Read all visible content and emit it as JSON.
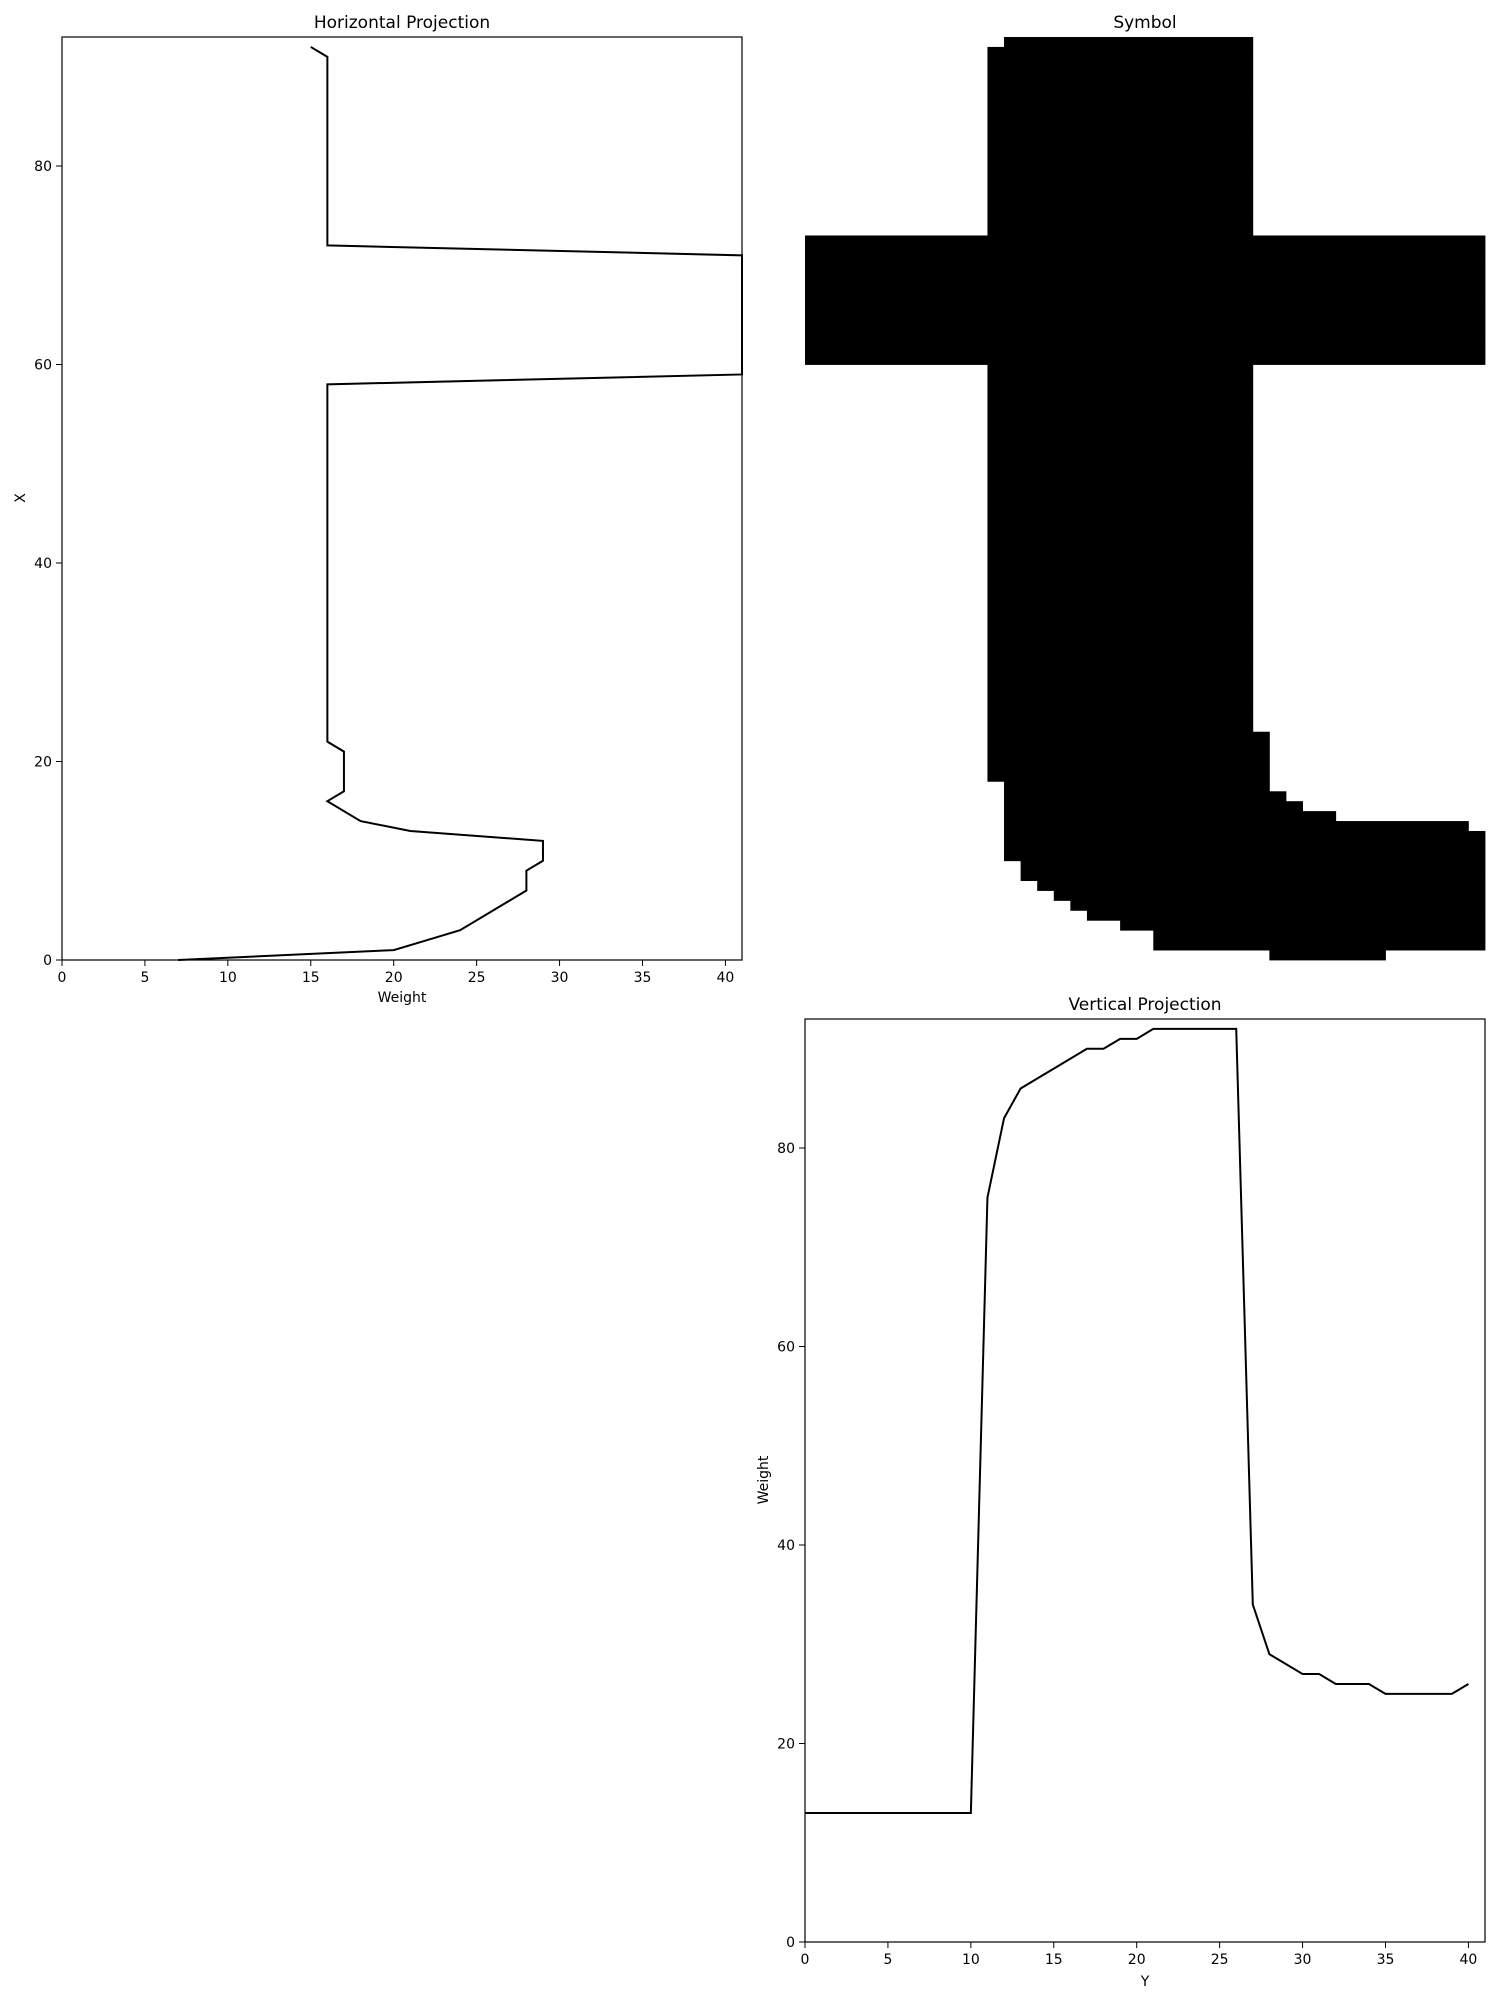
{
  "chart_data": [
    {
      "type": "line",
      "title": "Horizontal Projection",
      "xlabel": "Weight",
      "ylabel": "X",
      "xlim": [
        0,
        41
      ],
      "ylim": [
        0,
        93
      ],
      "xticks": [
        0,
        5,
        10,
        15,
        20,
        25,
        30,
        35,
        40
      ],
      "yticks": [
        0,
        20,
        40,
        60,
        80
      ],
      "color": "#000000",
      "points": [
        [
          7,
          0
        ],
        [
          20,
          1
        ],
        [
          22,
          2
        ],
        [
          24,
          3
        ],
        [
          26,
          5
        ],
        [
          28,
          7
        ],
        [
          28,
          9
        ],
        [
          29,
          10
        ],
        [
          29,
          12
        ],
        [
          21,
          13
        ],
        [
          18,
          14
        ],
        [
          16,
          16
        ],
        [
          17,
          17
        ],
        [
          17,
          21
        ],
        [
          16,
          22
        ],
        [
          16,
          58
        ],
        [
          41,
          59
        ],
        [
          41,
          71
        ],
        [
          16,
          72
        ],
        [
          16,
          91
        ],
        [
          15,
          92
        ]
      ]
    },
    {
      "type": "heatmap",
      "title": "Symbol",
      "rows": 93,
      "cols": 41,
      "fill_color": "#000000",
      "background": "#ffffff",
      "row_runs": [
        [
          [
            12,
            27
          ]
        ],
        [
          [
            11,
            27
          ]
        ],
        [
          [
            11,
            27
          ]
        ],
        [
          [
            11,
            27
          ]
        ],
        [
          [
            11,
            27
          ]
        ],
        [
          [
            11,
            27
          ]
        ],
        [
          [
            11,
            27
          ]
        ],
        [
          [
            11,
            27
          ]
        ],
        [
          [
            11,
            27
          ]
        ],
        [
          [
            11,
            27
          ]
        ],
        [
          [
            11,
            27
          ]
        ],
        [
          [
            11,
            27
          ]
        ],
        [
          [
            11,
            27
          ]
        ],
        [
          [
            11,
            27
          ]
        ],
        [
          [
            11,
            27
          ]
        ],
        [
          [
            11,
            27
          ]
        ],
        [
          [
            11,
            27
          ]
        ],
        [
          [
            11,
            27
          ]
        ],
        [
          [
            11,
            27
          ]
        ],
        [
          [
            11,
            27
          ]
        ],
        [
          [
            0,
            41
          ]
        ],
        [
          [
            0,
            41
          ]
        ],
        [
          [
            0,
            41
          ]
        ],
        [
          [
            0,
            41
          ]
        ],
        [
          [
            0,
            41
          ]
        ],
        [
          [
            0,
            41
          ]
        ],
        [
          [
            0,
            41
          ]
        ],
        [
          [
            0,
            41
          ]
        ],
        [
          [
            0,
            41
          ]
        ],
        [
          [
            0,
            41
          ]
        ],
        [
          [
            0,
            41
          ]
        ],
        [
          [
            0,
            41
          ]
        ],
        [
          [
            0,
            41
          ]
        ],
        [
          [
            11,
            27
          ]
        ],
        [
          [
            11,
            27
          ]
        ],
        [
          [
            11,
            27
          ]
        ],
        [
          [
            11,
            27
          ]
        ],
        [
          [
            11,
            27
          ]
        ],
        [
          [
            11,
            27
          ]
        ],
        [
          [
            11,
            27
          ]
        ],
        [
          [
            11,
            27
          ]
        ],
        [
          [
            11,
            27
          ]
        ],
        [
          [
            11,
            27
          ]
        ],
        [
          [
            11,
            27
          ]
        ],
        [
          [
            11,
            27
          ]
        ],
        [
          [
            11,
            27
          ]
        ],
        [
          [
            11,
            27
          ]
        ],
        [
          [
            11,
            27
          ]
        ],
        [
          [
            11,
            27
          ]
        ],
        [
          [
            11,
            27
          ]
        ],
        [
          [
            11,
            27
          ]
        ],
        [
          [
            11,
            27
          ]
        ],
        [
          [
            11,
            27
          ]
        ],
        [
          [
            11,
            27
          ]
        ],
        [
          [
            11,
            27
          ]
        ],
        [
          [
            11,
            27
          ]
        ],
        [
          [
            11,
            27
          ]
        ],
        [
          [
            11,
            27
          ]
        ],
        [
          [
            11,
            27
          ]
        ],
        [
          [
            11,
            27
          ]
        ],
        [
          [
            11,
            27
          ]
        ],
        [
          [
            11,
            27
          ]
        ],
        [
          [
            11,
            27
          ]
        ],
        [
          [
            11,
            27
          ]
        ],
        [
          [
            11,
            27
          ]
        ],
        [
          [
            11,
            27
          ]
        ],
        [
          [
            11,
            27
          ]
        ],
        [
          [
            11,
            27
          ]
        ],
        [
          [
            11,
            27
          ]
        ],
        [
          [
            11,
            27
          ]
        ],
        [
          [
            11,
            28
          ]
        ],
        [
          [
            11,
            28
          ]
        ],
        [
          [
            11,
            28
          ]
        ],
        [
          [
            11,
            28
          ]
        ],
        [
          [
            11,
            28
          ]
        ],
        [
          [
            12,
            28
          ]
        ],
        [
          [
            12,
            29
          ]
        ],
        [
          [
            12,
            30
          ]
        ],
        [
          [
            12,
            32
          ]
        ],
        [
          [
            12,
            40
          ]
        ],
        [
          [
            12,
            41
          ]
        ],
        [
          [
            12,
            41
          ]
        ],
        [
          [
            12,
            41
          ]
        ],
        [
          [
            13,
            41
          ]
        ],
        [
          [
            13,
            41
          ]
        ],
        [
          [
            14,
            41
          ]
        ],
        [
          [
            15,
            41
          ]
        ],
        [
          [
            16,
            41
          ]
        ],
        [
          [
            17,
            41
          ]
        ],
        [
          [
            19,
            41
          ]
        ],
        [
          [
            21,
            41
          ]
        ],
        [
          [
            21,
            41
          ]
        ],
        [
          [
            28,
            35
          ]
        ]
      ]
    },
    {
      "type": "line",
      "title": "Vertical Projection",
      "xlabel": "Y",
      "ylabel": "Weight",
      "xlim": [
        0,
        41
      ],
      "ylim": [
        0,
        93
      ],
      "xticks": [
        0,
        5,
        10,
        15,
        20,
        25,
        30,
        35,
        40
      ],
      "yticks": [
        0,
        20,
        40,
        60,
        80
      ],
      "color": "#000000",
      "points": [
        [
          0,
          13
        ],
        [
          10,
          13
        ],
        [
          11,
          75
        ],
        [
          12,
          83
        ],
        [
          13,
          86
        ],
        [
          17,
          90
        ],
        [
          18,
          90
        ],
        [
          19,
          91
        ],
        [
          20,
          91
        ],
        [
          21,
          92
        ],
        [
          26,
          92
        ],
        [
          27,
          34
        ],
        [
          28,
          29
        ],
        [
          30,
          27
        ],
        [
          31,
          27
        ],
        [
          32,
          26
        ],
        [
          34,
          26
        ],
        [
          35,
          25
        ],
        [
          39,
          25
        ],
        [
          40,
          26
        ]
      ]
    }
  ]
}
